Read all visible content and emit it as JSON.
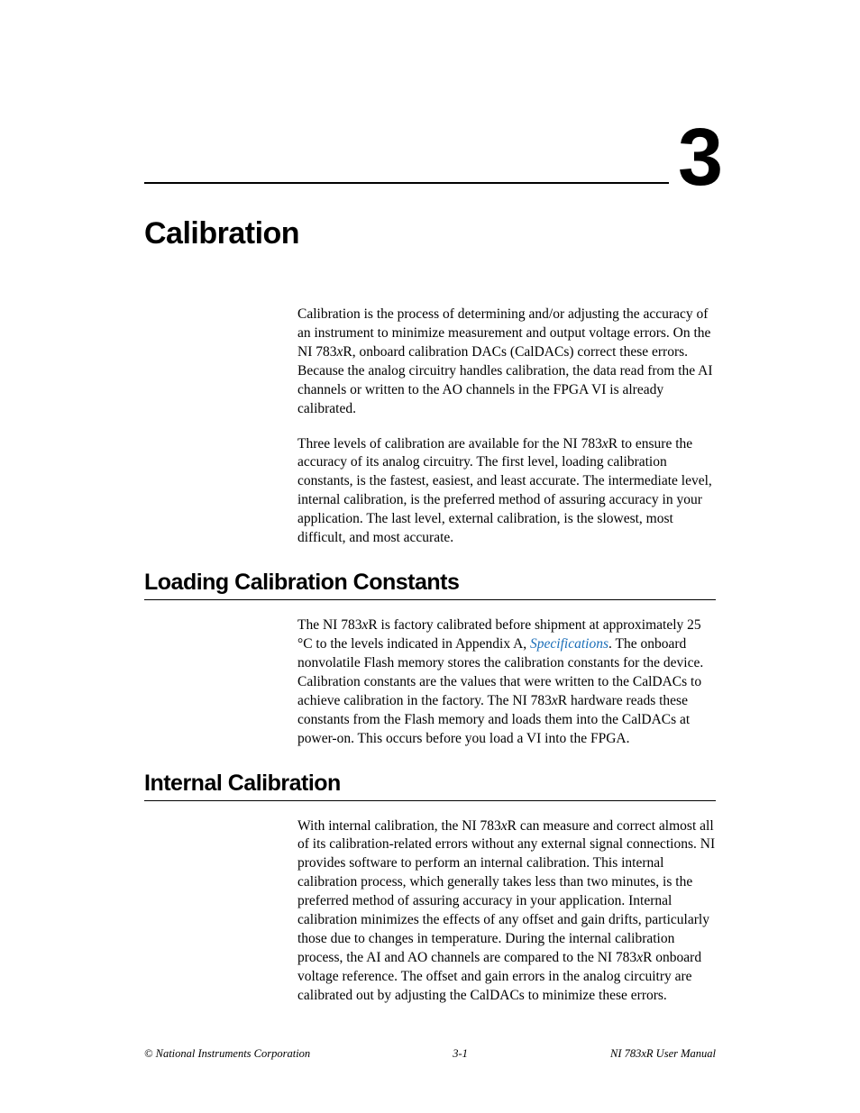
{
  "chapter": {
    "number": "3",
    "title": "Calibration"
  },
  "intro": {
    "p1_a": "Calibration is the process of determining and/or adjusting the accuracy of an instrument to minimize measurement and output voltage errors. On the NI 783",
    "p1_x": "x",
    "p1_b": "R, onboard calibration DACs (CalDACs) correct these errors. Because the analog circuitry handles calibration, the data read from the AI channels or written to the AO channels in the FPGA VI is already calibrated.",
    "p2_a": "Three levels of calibration are available for the NI 783",
    "p2_x": "x",
    "p2_b": "R to ensure the accuracy of its analog circuitry. The first level, loading calibration constants, is the fastest, easiest, and least accurate. The intermediate level, internal calibration, is the preferred method of assuring accuracy in your application. The last level, external calibration, is the slowest, most difficult, and most accurate."
  },
  "section_loading": {
    "title": "Loading Calibration Constants",
    "p1_a": "The NI 783",
    "p1_x1": "x",
    "p1_b": "R is factory calibrated before shipment at approximately 25 °C to the levels indicated in Appendix A, ",
    "p1_link": "Specifications",
    "p1_c": ". The onboard nonvolatile Flash memory stores the calibration constants for the device. Calibration constants are the values that were written to the CalDACs to achieve calibration in the factory. The NI 783",
    "p1_x2": "x",
    "p1_d": "R hardware reads these constants from the Flash memory and loads them into the CalDACs at power-on. This occurs before you load a VI into the FPGA."
  },
  "section_internal": {
    "title": "Internal Calibration",
    "p1_a": "With internal calibration, the NI 783",
    "p1_x1": "x",
    "p1_b": "R can measure and correct almost all of its calibration-related errors without any external signal connections. NI provides software to perform an internal calibration. This internal calibration process, which generally takes less than two minutes, is the preferred method of assuring accuracy in your application. Internal calibration minimizes the effects of any offset and gain drifts, particularly those due to changes in temperature. During the internal calibration process, the AI and AO channels are compared to the NI 783",
    "p1_x2": "x",
    "p1_c": "R onboard voltage reference. The offset and gain errors in the analog circuitry are calibrated out by adjusting the CalDACs to minimize these errors."
  },
  "footer": {
    "left": "© National Instruments Corporation",
    "center": "3-1",
    "right": "NI 783xR User Manual"
  },
  "style": {
    "link_color": "#1a6eb8",
    "text_color": "#000000",
    "background": "#ffffff",
    "heading_font": "Arial",
    "body_font": "Times New Roman",
    "chapter_number_fontsize": 90,
    "chapter_title_fontsize": 34,
    "section_title_fontsize": 25,
    "body_fontsize": 15.5,
    "footer_fontsize": 12.5
  }
}
